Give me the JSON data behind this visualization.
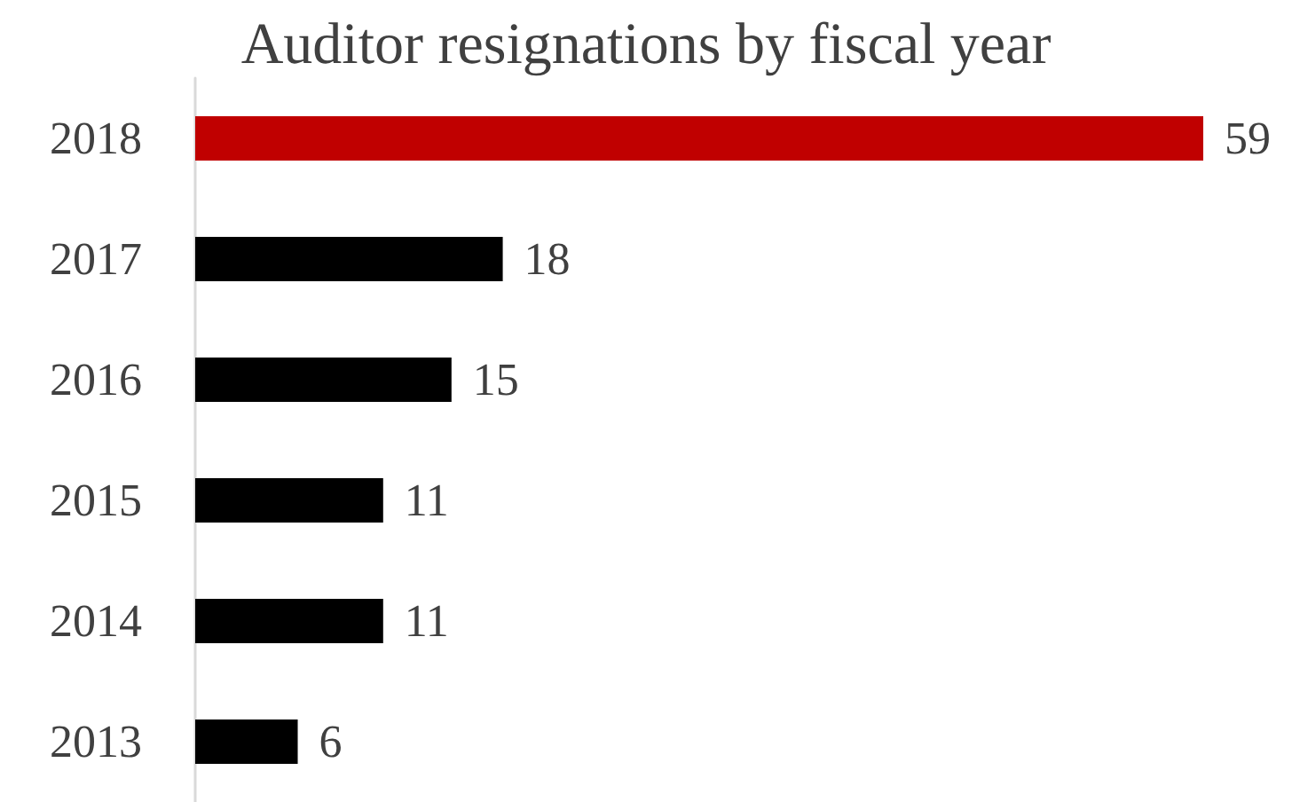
{
  "chart_data": {
    "type": "bar",
    "title": "Auditor resignations by fiscal year",
    "orientation": "horizontal",
    "categories": [
      "2018",
      "2017",
      "2016",
      "2015",
      "2014",
      "2013"
    ],
    "values": [
      59,
      18,
      15,
      11,
      11,
      6
    ],
    "colors": [
      "#c00000",
      "#000000",
      "#000000",
      "#000000",
      "#000000",
      "#000000"
    ],
    "data_labels": true
  }
}
